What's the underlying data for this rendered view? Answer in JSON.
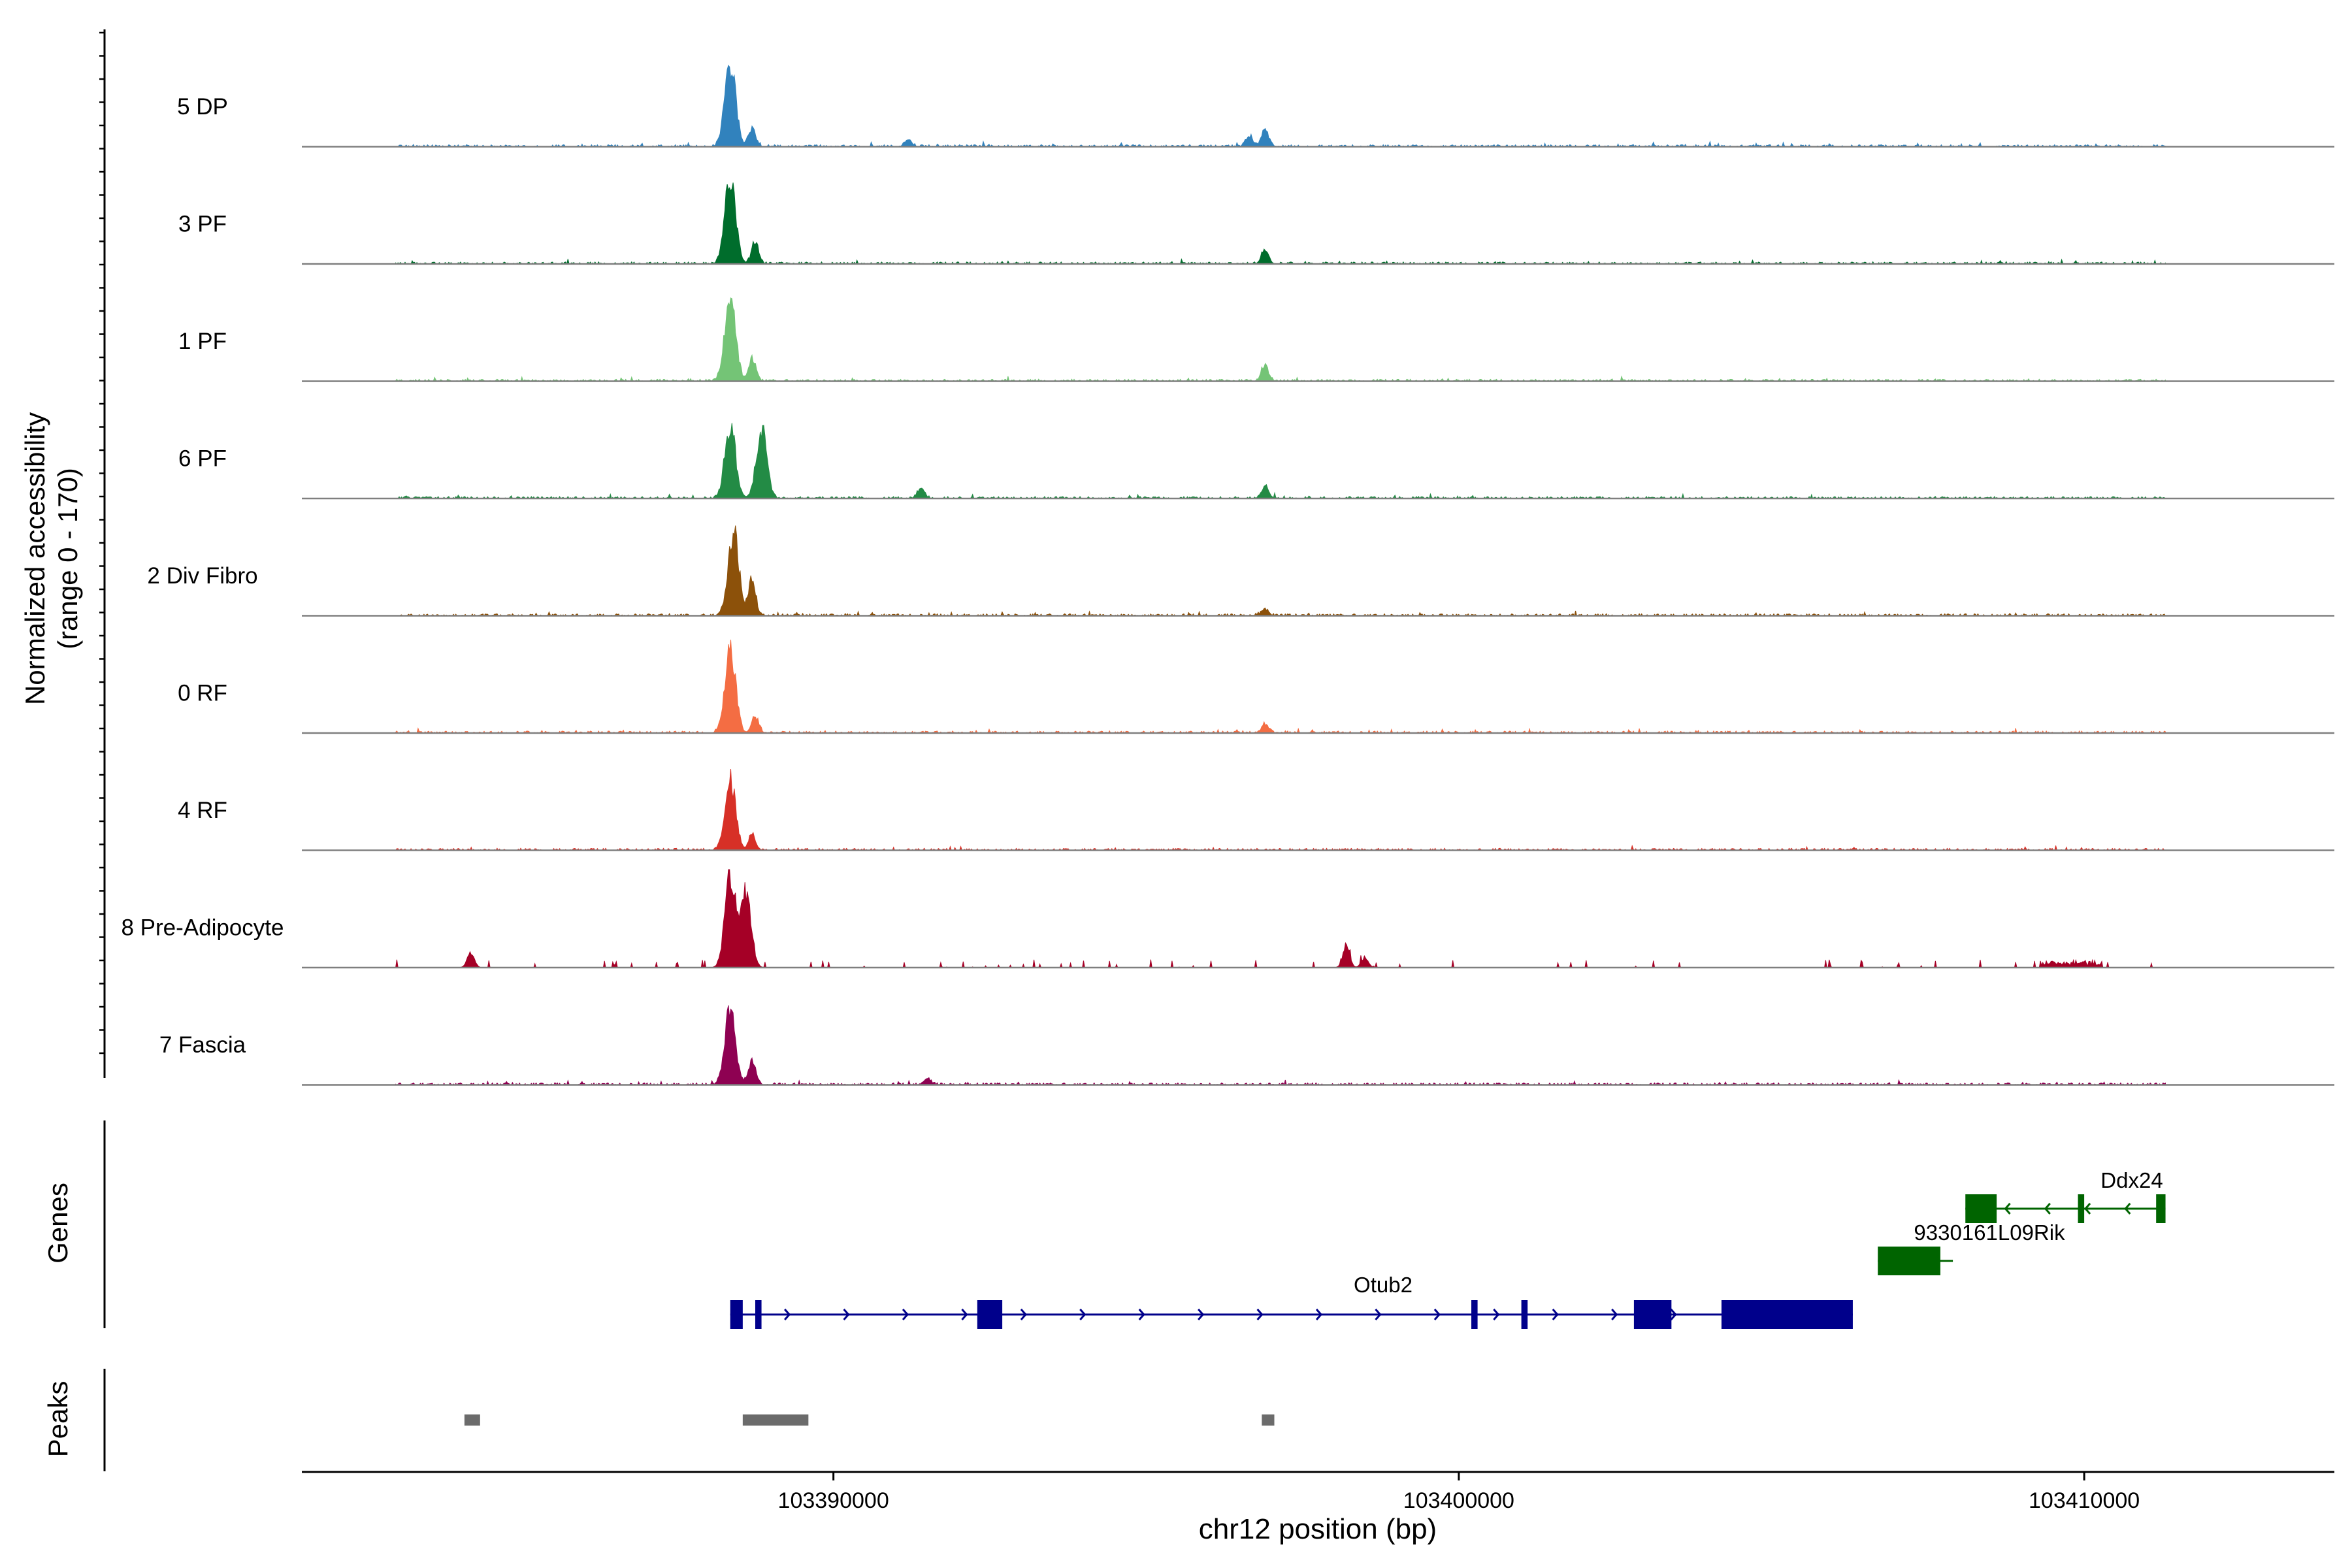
{
  "chart_data": {
    "type": "area",
    "ylabel_line1": "Normalized accessibility",
    "ylabel_line2": "(range 0 - 170)",
    "ylim": [
      0,
      170
    ],
    "xlabel": "chr12 position (bp)",
    "xlim": [
      103381500,
      103414000
    ],
    "xticks": [
      {
        "value": 103390000,
        "label": "103390000"
      },
      {
        "value": 103400000,
        "label": "103400000"
      },
      {
        "value": 103410000,
        "label": "103410000"
      }
    ],
    "tracks": [
      {
        "name": "5 DP",
        "color": "#3182BD",
        "peaks": [
          [
            103388350,
            150
          ],
          [
            103388700,
            32
          ],
          [
            103391200,
            12
          ],
          [
            103396650,
            18
          ],
          [
            103396900,
            30
          ]
        ]
      },
      {
        "name": "3 PF",
        "color": "#006D2C",
        "peaks": [
          [
            103388350,
            150
          ],
          [
            103388750,
            40
          ],
          [
            103396900,
            25
          ]
        ]
      },
      {
        "name": "1 PF",
        "color": "#74C476",
        "peaks": [
          [
            103388350,
            150
          ],
          [
            103388700,
            40
          ],
          [
            103396900,
            28
          ]
        ]
      },
      {
        "name": "6 PF",
        "color": "#238B45",
        "peaks": [
          [
            103388350,
            130
          ],
          [
            103388850,
            120
          ],
          [
            103391400,
            18
          ],
          [
            103396900,
            20
          ]
        ]
      },
      {
        "name": "2 Div Fibro",
        "color": "#8C510A",
        "peaks": [
          [
            103388400,
            150
          ],
          [
            103388700,
            70
          ],
          [
            103396900,
            12
          ]
        ]
      },
      {
        "name": "0 RF",
        "color": "#F46D43",
        "peaks": [
          [
            103388350,
            145
          ],
          [
            103388750,
            30
          ],
          [
            103396900,
            15
          ]
        ]
      },
      {
        "name": "4 RF",
        "color": "#D73027",
        "peaks": [
          [
            103388350,
            125
          ],
          [
            103388700,
            28
          ]
        ]
      },
      {
        "name": "8 Pre-Adipocyte",
        "color": "#A50026",
        "peaks": [
          [
            103388350,
            165
          ],
          [
            103388600,
            130
          ],
          [
            103384200,
            25
          ],
          [
            103398200,
            35
          ],
          [
            103398500,
            18
          ]
        ]
      },
      {
        "name": "7 Fascia",
        "color": "#8E0152",
        "peaks": [
          [
            103388350,
            130
          ],
          [
            103388700,
            45
          ],
          [
            103391500,
            12
          ]
        ]
      }
    ],
    "genes": [
      {
        "name": "Otub2",
        "strand": "+",
        "start": 103388350,
        "end": 103406300,
        "exons": [
          [
            103388350,
            103388550
          ],
          [
            103388750,
            103388850
          ],
          [
            103392300,
            103392700
          ],
          [
            103400200,
            103400300
          ],
          [
            103401000,
            103401100
          ],
          [
            103402800,
            103403400
          ],
          [
            103404200,
            103406300
          ]
        ]
      },
      {
        "name": "9330161L09Rik",
        "strand": "-",
        "start": 103406700,
        "end": 103407900,
        "exons": [
          [
            103406700,
            103407700
          ]
        ]
      },
      {
        "name": "Ddx24",
        "strand": "-",
        "start": 103408100,
        "end": 103411300,
        "exons": [
          [
            103408100,
            103408600
          ],
          [
            103409900,
            103410000
          ],
          [
            103411150,
            103411300
          ]
        ]
      }
    ],
    "gene_row_label": "Genes",
    "peaks_row_label": "Peaks",
    "peaks": [
      [
        103384100,
        103384350
      ],
      [
        103388550,
        103389600
      ],
      [
        103396850,
        103397050
      ]
    ]
  }
}
